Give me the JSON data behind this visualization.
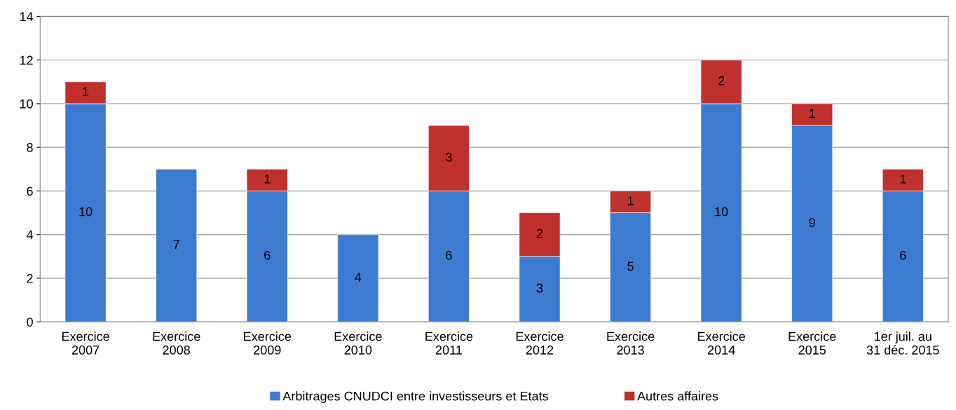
{
  "chart_data": {
    "type": "bar",
    "stacked": true,
    "categories": [
      "Exercice\n2007",
      "Exercice\n2008",
      "Exercice\n2009",
      "Exercice\n2010",
      "Exercice\n2011",
      "Exercice\n2012",
      "Exercice\n2013",
      "Exercice\n2014",
      "Exercice\n2015",
      "1er juil. au\n31 déc. 2015"
    ],
    "series": [
      {
        "name": "Arbitrages CNUDCI entre investisseurs et Etats",
        "color": "#3d7bd0",
        "values": [
          10,
          7,
          6,
          4,
          6,
          3,
          5,
          10,
          9,
          6
        ]
      },
      {
        "name": "Autres affaires",
        "color": "#c0302c",
        "values": [
          1,
          null,
          1,
          null,
          3,
          2,
          1,
          2,
          1,
          1
        ]
      }
    ],
    "ylim": [
      0,
      14
    ],
    "yticks": [
      0,
      2,
      4,
      6,
      8,
      10,
      12,
      14
    ],
    "grid": "y",
    "legend": "bottom",
    "data_labels": true
  }
}
